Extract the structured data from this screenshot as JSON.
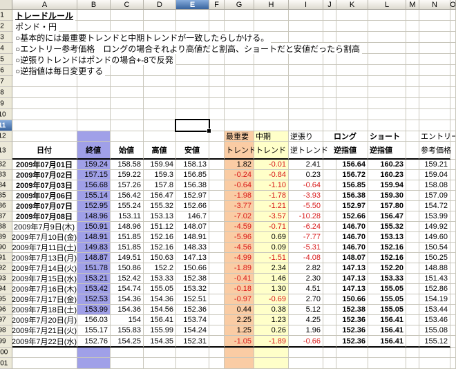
{
  "selection": {
    "column": "E",
    "row": "11",
    "active_cell": "E11"
  },
  "column_letters": [
    "A",
    "B",
    "C",
    "D",
    "E",
    "F",
    "G",
    "H",
    "I",
    "J",
    "K",
    "L",
    "M",
    "N",
    "O"
  ],
  "gutter_top_rows": [
    "1",
    "2",
    "3",
    "4",
    "5",
    "6",
    "7",
    "8",
    "9",
    "10",
    "11",
    "12",
    "13"
  ],
  "gutter_bottom_rows": [
    "100",
    "101"
  ],
  "notes": [
    "トレードルール",
    "ポンド・円",
    "○基本的には最重要トレンドと中期トレンドが一致したらしかける。",
    "○エントリー参考価格　ロングの場合それより高値だと割高、ショートだと安値だったら割高",
    "○逆張りトレンドはポンドの場合+-8で反発",
    "○逆指値は毎日変更する"
  ],
  "headers": {
    "date": "日付",
    "close": "終値",
    "open": "始値",
    "high": "高値",
    "low": "安値",
    "primary_line1": "最重要",
    "primary_line2": "トレンド",
    "mid_line1": "中期",
    "mid_line2": "トレンド",
    "contrarian_line1": "逆張り",
    "contrarian_line2": "逆トレンド",
    "long_line1": "ロング",
    "long_line2": "逆指値",
    "short_line1": "ショート",
    "short_line2": "逆指値",
    "entry_line1": "エントリー",
    "entry_line2": "参考価格"
  },
  "rows": [
    {
      "num": "82",
      "date": "2009年07月01日",
      "bold": true,
      "close": "159.24",
      "open": "158.58",
      "high": "159.94",
      "low": "158.13",
      "g": "1.82",
      "h": "-0.01",
      "i": "2.41",
      "long": "156.64",
      "short": "160.23",
      "entry": "159.21"
    },
    {
      "num": "83",
      "date": "2009年07月02日",
      "bold": true,
      "close": "157.15",
      "open": "159.22",
      "high": "159.3",
      "low": "156.85",
      "g": "-0.24",
      "h": "-0.84",
      "i": "0.23",
      "long": "156.72",
      "short": "160.23",
      "entry": "159.04"
    },
    {
      "num": "84",
      "date": "2009年07月03日",
      "bold": true,
      "close": "156.68",
      "open": "157.26",
      "high": "157.8",
      "low": "156.38",
      "g": "-0.64",
      "h": "-1.10",
      "i": "-0.64",
      "long": "156.85",
      "short": "159.94",
      "entry": "158.08"
    },
    {
      "num": "85",
      "date": "2009年07月06日",
      "bold": true,
      "close": "155.14",
      "open": "156.42",
      "high": "156.47",
      "low": "152.97",
      "g": "-1.98",
      "h": "-1.78",
      "i": "-3.93",
      "long": "156.38",
      "short": "159.30",
      "entry": "157.09"
    },
    {
      "num": "86",
      "date": "2009年07月07日",
      "bold": true,
      "close": "152.95",
      "open": "155.24",
      "high": "155.32",
      "low": "152.66",
      "g": "-3.77",
      "h": "-1.21",
      "i": "-5.50",
      "long": "152.97",
      "short": "157.80",
      "entry": "154.72"
    },
    {
      "num": "87",
      "date": "2009年07月08日",
      "bold": true,
      "close": "148.96",
      "open": "153.11",
      "high": "153.13",
      "low": "146.7",
      "g": "-7.02",
      "h": "-3.57",
      "i": "-10.28",
      "long": "152.66",
      "short": "156.47",
      "entry": "153.99"
    },
    {
      "num": "88",
      "date": "2009年7月9日(木)",
      "bold": false,
      "close": "150.91",
      "open": "148.96",
      "high": "151.12",
      "low": "148.07",
      "g": "-4.59",
      "h": "-0.71",
      "i": "-6.24",
      "long": "146.70",
      "short": "155.32",
      "entry": "149.92"
    },
    {
      "num": "89",
      "date": "2009年7月10日(金)",
      "bold": false,
      "close": "148.91",
      "open": "151.85",
      "high": "152.16",
      "low": "148.91",
      "g": "-5.96",
      "h": "0.69",
      "i": "-7.77",
      "long": "146.70",
      "short": "153.13",
      "entry": "149.60"
    },
    {
      "num": "90",
      "date": "2009年7月11日(土)",
      "bold": false,
      "close": "149.83",
      "open": "151.85",
      "high": "152.16",
      "low": "148.33",
      "g": "-4.56",
      "h": "0.09",
      "i": "-5.31",
      "long": "146.70",
      "short": "152.16",
      "entry": "150.54"
    },
    {
      "num": "91",
      "date": "2009年7月13日(月)",
      "bold": false,
      "close": "148.87",
      "open": "149.51",
      "high": "150.63",
      "low": "147.13",
      "g": "-4.99",
      "h": "-1.51",
      "i": "-4.08",
      "long": "148.07",
      "short": "152.16",
      "entry": "150.25"
    },
    {
      "num": "92",
      "date": "2009年7月14日(火)",
      "bold": false,
      "close": "151.78",
      "open": "150.86",
      "high": "152.2",
      "low": "150.66",
      "g": "-1.89",
      "h": "2.34",
      "i": "2.82",
      "long": "147.13",
      "short": "152.20",
      "entry": "148.88"
    },
    {
      "num": "93",
      "date": "2009年7月15日(水)",
      "bold": false,
      "close": "153.21",
      "open": "152.42",
      "high": "153.33",
      "low": "152.38",
      "g": "-0.41",
      "h": "1.46",
      "i": "2.30",
      "long": "147.13",
      "short": "153.33",
      "entry": "151.43"
    },
    {
      "num": "94",
      "date": "2009年7月16日(木)",
      "bold": false,
      "close": "153.42",
      "open": "154.74",
      "high": "155.05",
      "low": "153.32",
      "g": "-0.18",
      "h": "1.30",
      "i": "4.51",
      "long": "147.13",
      "short": "155.05",
      "entry": "152.86"
    },
    {
      "num": "95",
      "date": "2009年7月17日(金)",
      "bold": false,
      "close": "152.53",
      "open": "154.36",
      "high": "154.36",
      "low": "152.51",
      "g": "-0.97",
      "h": "-0.69",
      "i": "2.70",
      "long": "150.66",
      "short": "155.05",
      "entry": "154.19"
    },
    {
      "num": "96",
      "date": "2009年7月18日(土)",
      "bold": false,
      "close": "153.99",
      "open": "154.36",
      "high": "154.56",
      "low": "152.36",
      "g": "0.44",
      "h": "0.38",
      "i": "5.12",
      "long": "152.38",
      "short": "155.05",
      "entry": "153.44"
    },
    {
      "num": "97",
      "date": "2009年7月20日(月)",
      "bold": false,
      "close": "156.03",
      "close_white": true,
      "open": "154",
      "high": "156.41",
      "low": "153.74",
      "g": "2.25",
      "h": "1.23",
      "i": "4.25",
      "long": "152.36",
      "short": "156.41",
      "entry": "153.46"
    },
    {
      "num": "98",
      "date": "2009年7月21日(火)",
      "bold": false,
      "close": "155.17",
      "close_white": true,
      "open": "155.83",
      "high": "155.99",
      "low": "154.24",
      "g": "1.25",
      "h": "0.26",
      "i": "1.96",
      "long": "152.36",
      "short": "156.41",
      "entry": "155.08"
    },
    {
      "num": "99",
      "date": "2009年7月22日(水)",
      "bold": false,
      "close": "152.76",
      "close_white": true,
      "open": "154.25",
      "high": "154.35",
      "low": "152.31",
      "g": "-1.05",
      "h": "-1.89",
      "i": "-0.66",
      "long": "152.36",
      "short": "156.41",
      "entry": "155.12"
    }
  ],
  "colors": {
    "close_column_fill": "#a0a0e8",
    "primary_trend_fill": "#facca4",
    "mid_trend_fill": "#ffffc9",
    "negative_value": "#d81818",
    "selection_top": "#86acdc",
    "selection_bottom": "#38649f",
    "gridline": "#c8c6bb"
  }
}
